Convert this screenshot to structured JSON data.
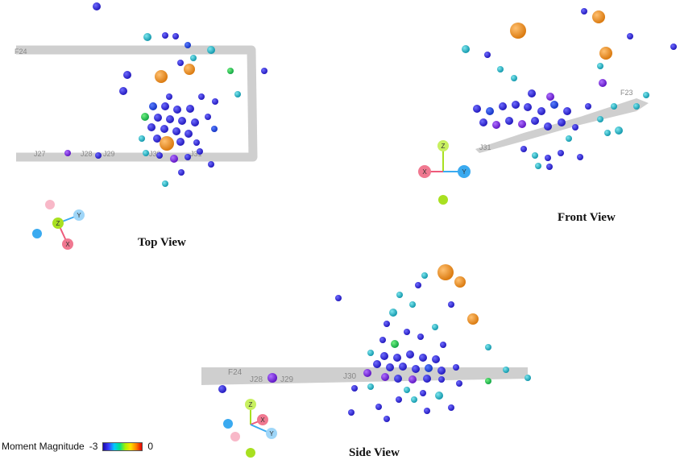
{
  "views": [
    {
      "label": "Top View"
    },
    {
      "label": "Front View"
    },
    {
      "label": "Side View"
    }
  ],
  "markers": {
    "top": [
      "J27",
      "J28",
      "J29",
      "J30",
      "J31",
      "F24"
    ],
    "front": [
      "J31",
      "F23"
    ],
    "side": [
      "F24",
      "J28",
      "J29",
      "J30"
    ]
  },
  "axes_labels": {
    "x": "X",
    "y": "Y",
    "z": "Z"
  },
  "legend": {
    "title": "Moment Magnitude",
    "min": "-3",
    "max": "0"
  },
  "colors": {
    "tunnel": "#c8c8c8",
    "small_event": "#2a1fd8",
    "mid_event": "#00a8c8",
    "large_event": "#f0901a",
    "axis_x": "#ee5a7a",
    "axis_y": "#3aaaf0",
    "axis_z": "#a8e020"
  }
}
